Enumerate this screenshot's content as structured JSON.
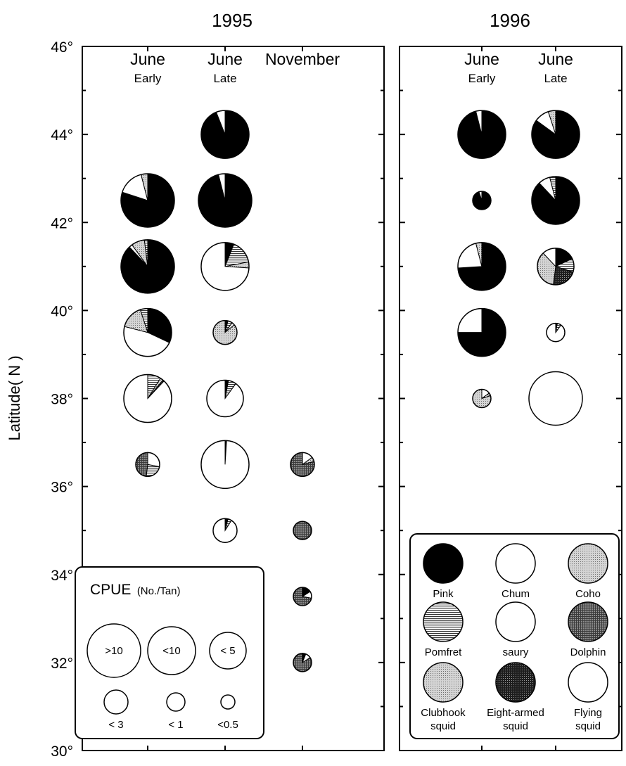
{
  "chart_data": [
    {
      "type": "pie",
      "title": "1995",
      "ylabel": "Latitude( N )",
      "ylim": [
        30,
        46
      ],
      "yticks": [
        {
          "value": 46,
          "label": "46°"
        },
        {
          "value": 44,
          "label": "44°"
        },
        {
          "value": 42,
          "label": "42°"
        },
        {
          "value": 40,
          "label": "40°"
        },
        {
          "value": 38,
          "label": "38°"
        },
        {
          "value": 36,
          "label": "36°"
        },
        {
          "value": 34,
          "label": "34°"
        },
        {
          "value": 32,
          "label": "32°"
        },
        {
          "value": 30,
          "label": "30°"
        }
      ],
      "columns": [
        {
          "line1": "June",
          "line2": "Early"
        },
        {
          "line1": "June",
          "line2": "Late"
        },
        {
          "line1": "November",
          "line2": ""
        }
      ],
      "pies": [
        {
          "col": 0,
          "lat": 42.5,
          "cpue": ">10",
          "shares": {
            "Pink": 0.8,
            "Chum": 0.16,
            "Coho": 0.04
          }
        },
        {
          "col": 0,
          "lat": 41.0,
          "cpue": ">10",
          "shares": {
            "Pink": 0.88,
            "Chum": 0.02,
            "Coho": 0.08,
            "Pomfret": 0.02
          }
        },
        {
          "col": 0,
          "lat": 39.5,
          "cpue": "<10",
          "shares": {
            "Pink": 0.32,
            "Chum": 0.47,
            "Coho": 0.16,
            "Pomfret": 0.05
          }
        },
        {
          "col": 0,
          "lat": 38.0,
          "cpue": "<10",
          "shares": {
            "Pomfret": 0.09,
            "Coho": 0.02,
            "Eight-armed squid": 0.01,
            "Chum": 0.88
          }
        },
        {
          "col": 0,
          "lat": 36.5,
          "cpue": "< 3",
          "shares": {
            "Chum": 0.28,
            "Pomfret": 0.24,
            "Dolphin": 0.48
          }
        },
        {
          "col": 1,
          "lat": 44.0,
          "cpue": "<10",
          "shares": {
            "Pink": 0.94,
            "Chum": 0.06
          }
        },
        {
          "col": 1,
          "lat": 42.5,
          "cpue": ">10",
          "shares": {
            "Pink": 0.96,
            "Chum": 0.04
          }
        },
        {
          "col": 1,
          "lat": 41.0,
          "cpue": "<10",
          "shares": {
            "Pink": 0.06,
            "Pomfret": 0.16,
            "Coho": 0.04,
            "Chum": 0.74
          }
        },
        {
          "col": 1,
          "lat": 39.5,
          "cpue": "< 3",
          "shares": {
            "Pink": 0.04,
            "Pomfret": 0.06,
            "Chum": 0.04,
            "Coho": 0.86
          }
        },
        {
          "col": 1,
          "lat": 38.0,
          "cpue": "< 5",
          "shares": {
            "Pink": 0.03,
            "Pomfret": 0.07,
            "Chum": 0.9
          }
        },
        {
          "col": 1,
          "lat": 36.5,
          "cpue": "<10",
          "shares": {
            "Pink": 0.01,
            "Chum": 0.99
          }
        },
        {
          "col": 1,
          "lat": 35.0,
          "cpue": "< 3",
          "shares": {
            "Pink": 0.04,
            "Pomfret": 0.05,
            "Chum": 0.91
          }
        },
        {
          "col": 2,
          "lat": 36.5,
          "cpue": "< 3",
          "shares": {
            "Chum": 0.15,
            "Coho": 0.06,
            "Dolphin": 0.79
          }
        },
        {
          "col": 2,
          "lat": 35.0,
          "cpue": "< 1",
          "shares": {
            "Dolphin": 1.0
          }
        },
        {
          "col": 2,
          "lat": 33.5,
          "cpue": "< 1",
          "shares": {
            "Pink": 0.16,
            "Chum": 0.12,
            "Dolphin": 0.72
          }
        },
        {
          "col": 2,
          "lat": 32.0,
          "cpue": "< 1",
          "shares": {
            "Pink": 0.06,
            "Chum": 0.1,
            "Dolphin": 0.84
          }
        }
      ],
      "cpue_legend": {
        "title": "CPUE",
        "subtitle": "(No./Tan)",
        "sizes": [
          ">10",
          "<10",
          "< 5",
          "< 3",
          "< 1",
          "<0.5"
        ]
      }
    },
    {
      "type": "pie",
      "title": "1996",
      "ylim": [
        30,
        46
      ],
      "columns": [
        {
          "line1": "June",
          "line2": "Early"
        },
        {
          "line1": "June",
          "line2": "Late"
        }
      ],
      "pies": [
        {
          "col": 0,
          "lat": 44.0,
          "cpue": "<10",
          "shares": {
            "Pink": 0.96,
            "Chum": 0.04
          }
        },
        {
          "col": 0,
          "lat": 42.5,
          "cpue": "< 1",
          "shares": {
            "Pink": 0.95,
            "Chum": 0.05
          }
        },
        {
          "col": 0,
          "lat": 41.0,
          "cpue": "<10",
          "shares": {
            "Pink": 0.74,
            "Chum": 0.22,
            "Coho": 0.04
          }
        },
        {
          "col": 0,
          "lat": 39.5,
          "cpue": "<10",
          "shares": {
            "Pink": 0.75,
            "Chum": 0.25
          }
        },
        {
          "col": 0,
          "lat": 38.0,
          "cpue": "< 1",
          "shares": {
            "Chum": 0.15,
            "Pomfret": 0.05,
            "Coho": 0.8
          }
        },
        {
          "col": 1,
          "lat": 44.0,
          "cpue": "<10",
          "shares": {
            "Pink": 0.85,
            "Chum": 0.1,
            "Coho": 0.05
          }
        },
        {
          "col": 1,
          "lat": 42.5,
          "cpue": "<10",
          "shares": {
            "Pink": 0.88,
            "Chum": 0.08,
            "Pomfret": 0.04
          }
        },
        {
          "col": 1,
          "lat": 41.0,
          "cpue": "< 5",
          "shares": {
            "Pink": 0.18,
            "Pomfret": 0.12,
            "Eight-armed squid": 0.22,
            "Coho": 0.36,
            "Chum": 0.12
          }
        },
        {
          "col": 1,
          "lat": 39.5,
          "cpue": "< 1",
          "shares": {
            "Pink": 0.03,
            "Pomfret": 0.07,
            "Chum": 0.9
          }
        },
        {
          "col": 1,
          "lat": 38.0,
          "cpue": ">10",
          "shares": {
            "Chum": 1.0
          }
        }
      ],
      "species_legend": [
        {
          "name": "Pink",
          "label1": "Pink",
          "label2": "",
          "fill": "black"
        },
        {
          "name": "Chum",
          "label1": "Chum",
          "label2": "",
          "fill": "white"
        },
        {
          "name": "Coho",
          "label1": "Coho",
          "label2": "",
          "fill": "lightdots"
        },
        {
          "name": "Pomfret",
          "label1": "Pomfret",
          "label2": "",
          "fill": "hstripes"
        },
        {
          "name": "saury",
          "label1": "saury",
          "label2": "",
          "fill": "white"
        },
        {
          "name": "Dolphin",
          "label1": "Dolphin",
          "label2": "",
          "fill": "grid"
        },
        {
          "name": "Clubhook squid",
          "label1": "Clubhook",
          "label2": "squid",
          "fill": "lightdots"
        },
        {
          "name": "Eight-armed squid",
          "label1": "Eight-armed",
          "label2": "squid",
          "fill": "darkdots"
        },
        {
          "name": "Flying squid",
          "label1": "Flying",
          "label2": "squid",
          "fill": "white"
        }
      ]
    }
  ]
}
